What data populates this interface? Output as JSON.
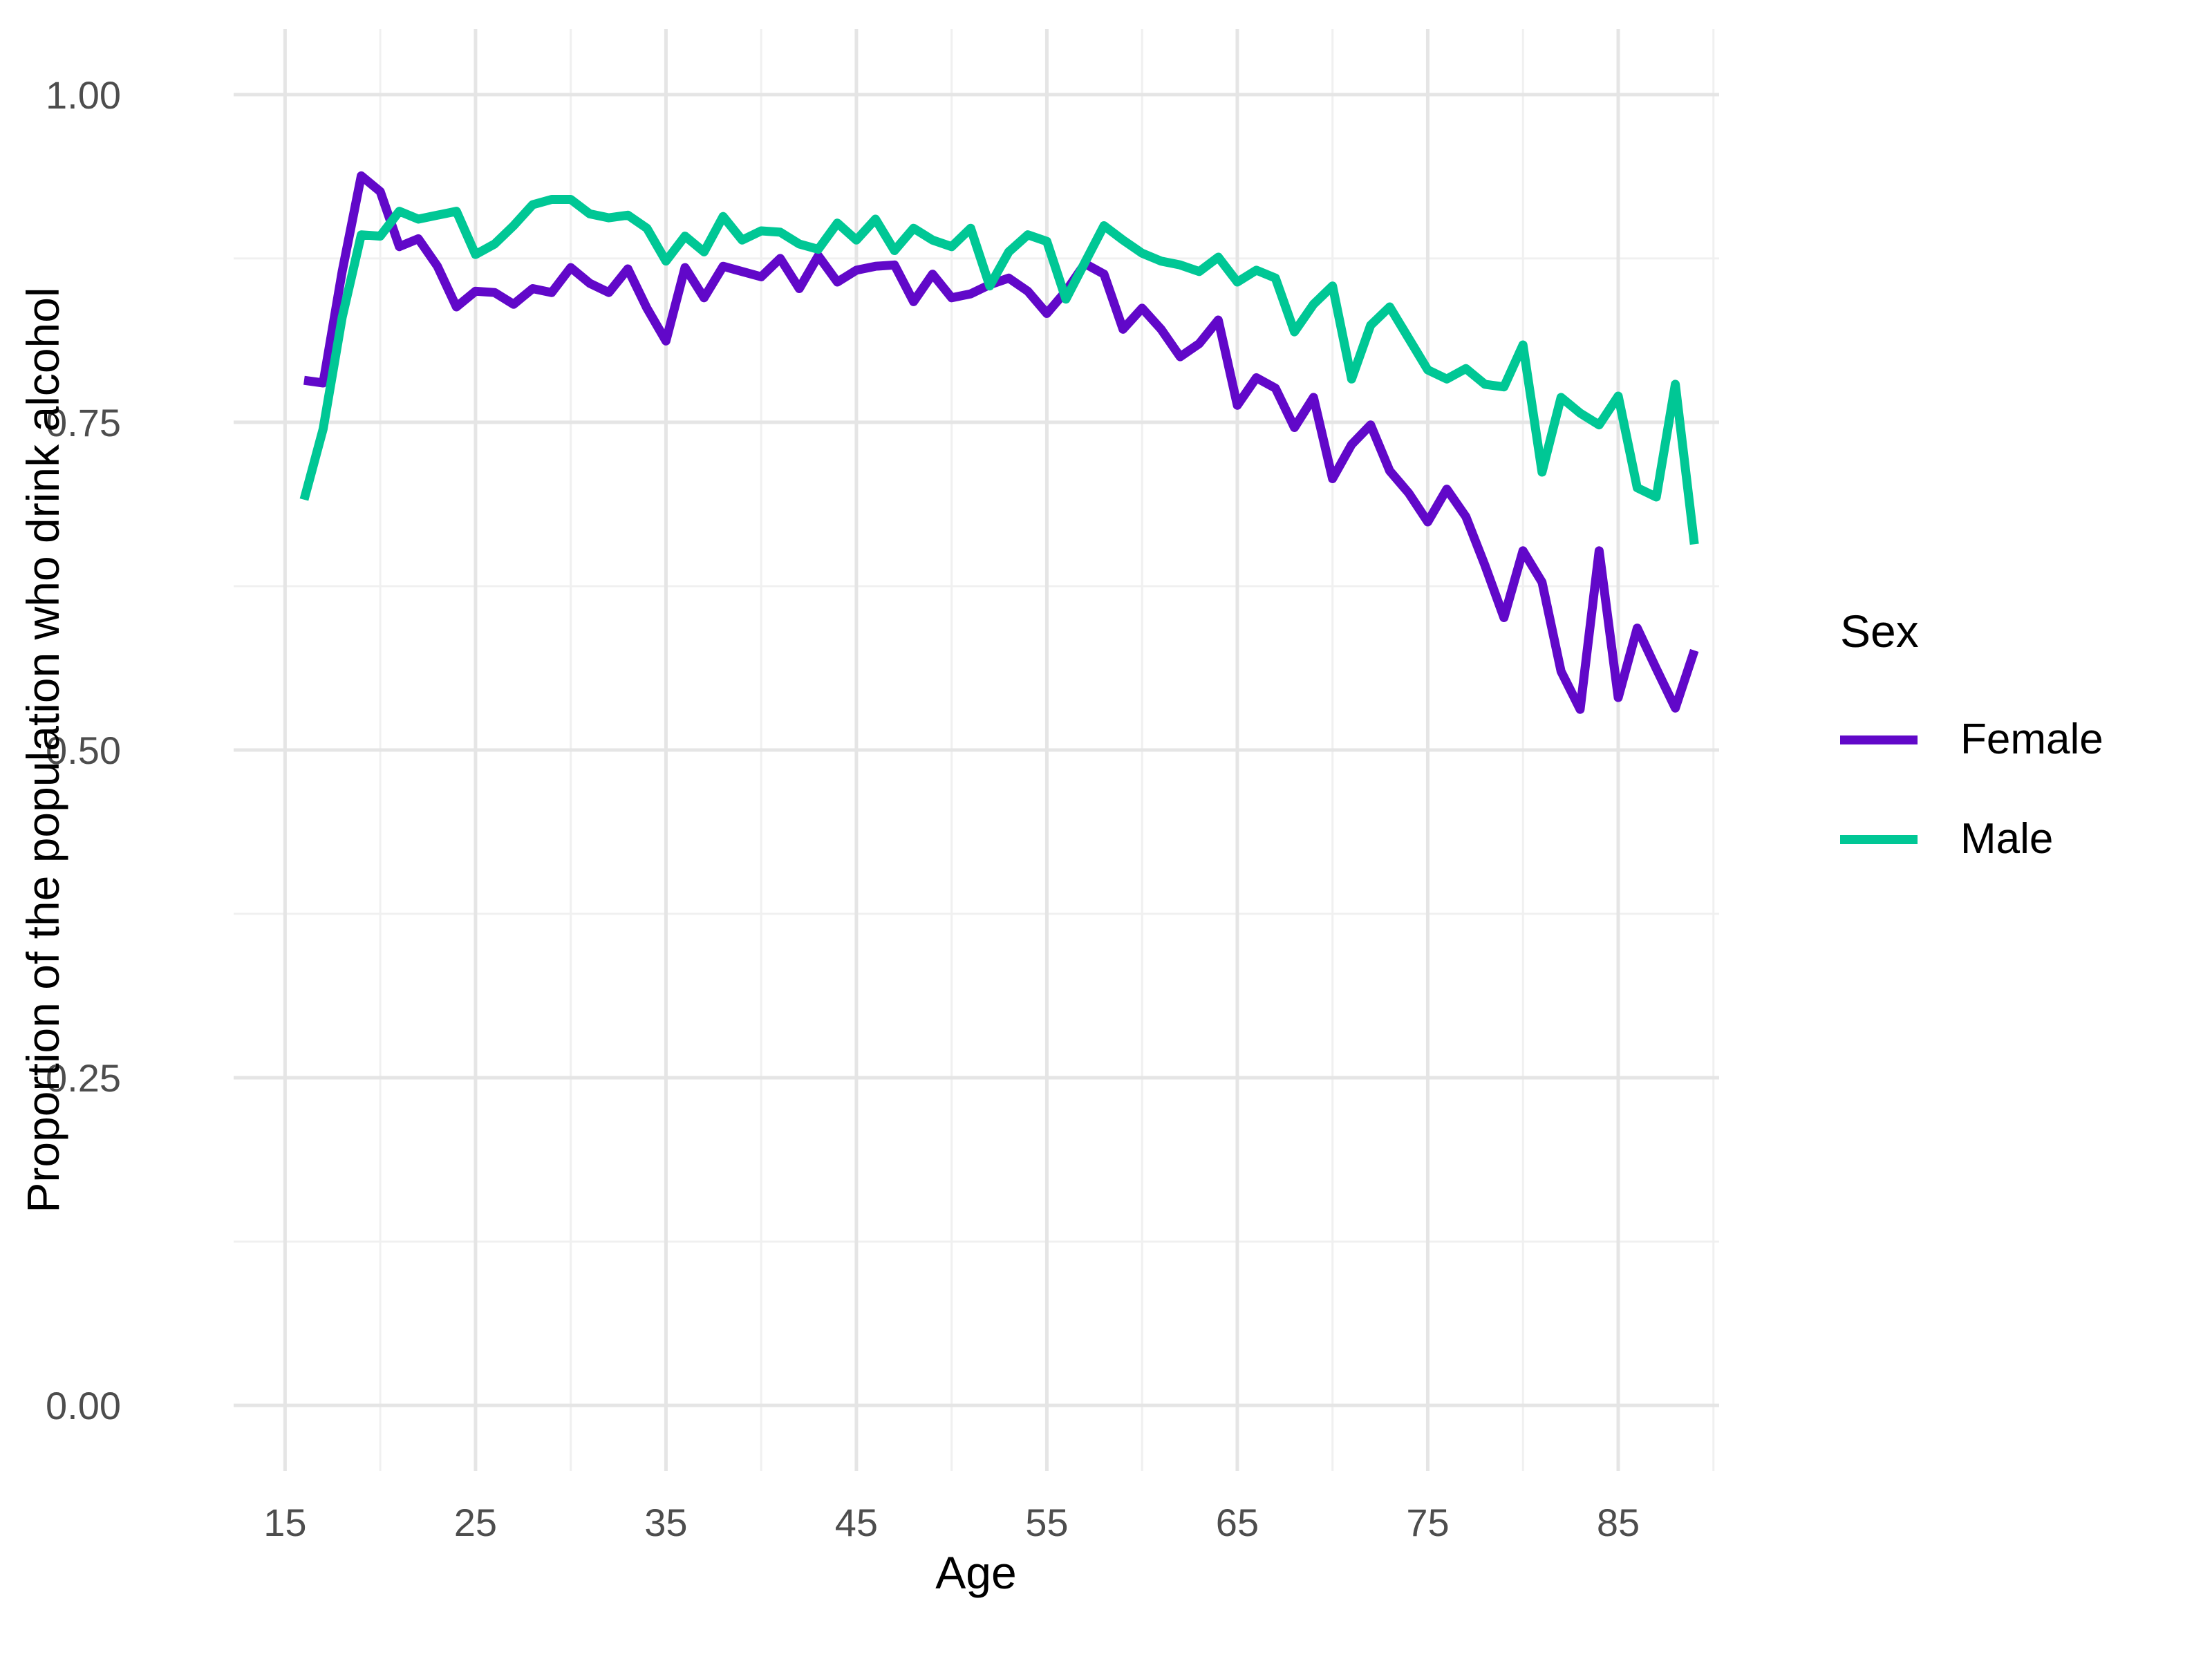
{
  "chart_data": {
    "type": "line",
    "title": "",
    "xlabel": "Age",
    "ylabel": "Proportion of the population who drink alcohol",
    "grid": "on",
    "legend": {
      "title": "Sex",
      "position": "right"
    },
    "xlim": [
      12.3,
      90.3
    ],
    "ylim": [
      -0.05,
      1.05
    ],
    "x_ticks": {
      "major": [
        15,
        25,
        35,
        45,
        55,
        65,
        75,
        85
      ],
      "minor": [
        20,
        30,
        40,
        50,
        60,
        70,
        80,
        90
      ],
      "labels": [
        "15",
        "25",
        "35",
        "45",
        "55",
        "65",
        "75",
        "85"
      ]
    },
    "y_ticks": {
      "major": [
        0,
        0.25,
        0.5,
        0.75,
        1.0
      ],
      "minor": [
        0.125,
        0.375,
        0.625,
        0.875
      ],
      "labels": [
        "0.00",
        "0.25",
        "0.50",
        "0.75",
        "1.00"
      ]
    },
    "x": [
      16,
      17,
      18,
      19,
      20,
      21,
      22,
      23,
      24,
      25,
      26,
      27,
      28,
      29,
      30,
      31,
      32,
      33,
      34,
      35,
      36,
      37,
      38,
      39,
      40,
      41,
      42,
      43,
      44,
      45,
      46,
      47,
      48,
      49,
      50,
      51,
      52,
      53,
      54,
      55,
      56,
      57,
      58,
      59,
      60,
      61,
      62,
      63,
      64,
      65,
      66,
      67,
      68,
      69,
      70,
      71,
      72,
      73,
      74,
      75,
      76,
      77,
      78,
      79,
      80,
      81,
      82,
      83,
      84,
      85,
      86,
      87,
      88,
      89
    ],
    "series": [
      {
        "name": "Female",
        "color": "#6108C9",
        "values": [
          0.782,
          0.78,
          0.865,
          0.938,
          0.926,
          0.884,
          0.89,
          0.869,
          0.838,
          0.85,
          0.849,
          0.84,
          0.852,
          0.849,
          0.868,
          0.856,
          0.849,
          0.867,
          0.837,
          0.812,
          0.868,
          0.845,
          0.869,
          0.865,
          0.861,
          0.875,
          0.852,
          0.877,
          0.857,
          0.866,
          0.869,
          0.87,
          0.842,
          0.863,
          0.845,
          0.848,
          0.855,
          0.86,
          0.85,
          0.833,
          0.85,
          0.871,
          0.863,
          0.821,
          0.837,
          0.821,
          0.8,
          0.81,
          0.828,
          0.763,
          0.784,
          0.776,
          0.746,
          0.769,
          0.707,
          0.733,
          0.748,
          0.713,
          0.696,
          0.674,
          0.699,
          0.678,
          0.641,
          0.601,
          0.652,
          0.628,
          0.56,
          0.531,
          0.652,
          0.54,
          0.593,
          0.562,
          0.532,
          0.576
        ]
      },
      {
        "name": "Male",
        "color": "#00C795",
        "values": [
          0.691,
          0.745,
          0.83,
          0.893,
          0.892,
          0.911,
          0.905,
          0.908,
          0.911,
          0.878,
          0.886,
          0.9,
          0.916,
          0.92,
          0.92,
          0.909,
          0.906,
          0.908,
          0.898,
          0.873,
          0.892,
          0.88,
          0.907,
          0.889,
          0.896,
          0.895,
          0.886,
          0.882,
          0.902,
          0.889,
          0.905,
          0.881,
          0.898,
          0.889,
          0.884,
          0.898,
          0.854,
          0.88,
          0.893,
          0.888,
          0.844,
          0.872,
          0.9,
          0.889,
          0.879,
          0.873,
          0.87,
          0.865,
          0.876,
          0.857,
          0.866,
          0.86,
          0.819,
          0.84,
          0.854,
          0.783,
          0.824,
          0.838,
          0.814,
          0.79,
          0.783,
          0.791,
          0.779,
          0.777,
          0.809,
          0.712,
          0.769,
          0.757,
          0.748,
          0.77,
          0.7,
          0.693,
          0.779,
          0.657
        ]
      }
    ],
    "style": {
      "tick_label_color": "#4D4D4D",
      "major_grid_color": "#E5E5E5",
      "minor_grid_color": "#F0F0F0",
      "background": "#FFFFFF"
    }
  }
}
